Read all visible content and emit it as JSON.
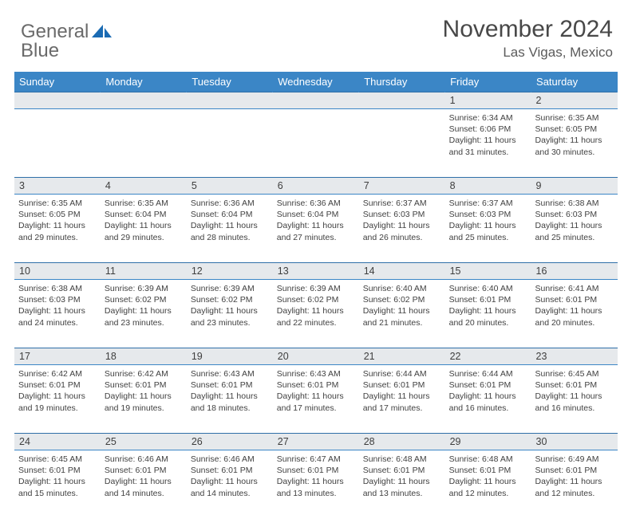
{
  "brand": {
    "name_a": "General",
    "name_b": "Blue"
  },
  "header": {
    "title": "November 2024",
    "location": "Las Vigas, Mexico"
  },
  "colors": {
    "header_bg": "#3b86c6",
    "header_text": "#ffffff",
    "daynum_bg": "#e6e9ec",
    "border": "#2f6fa8",
    "text": "#414141"
  },
  "days_of_week": [
    "Sunday",
    "Monday",
    "Tuesday",
    "Wednesday",
    "Thursday",
    "Friday",
    "Saturday"
  ],
  "weeks": [
    {
      "nums": [
        "",
        "",
        "",
        "",
        "",
        "1",
        "2"
      ],
      "cells": [
        "",
        "",
        "",
        "",
        "",
        "Sunrise: 6:34 AM\nSunset: 6:06 PM\nDaylight: 11 hours and 31 minutes.",
        "Sunrise: 6:35 AM\nSunset: 6:05 PM\nDaylight: 11 hours and 30 minutes."
      ]
    },
    {
      "nums": [
        "3",
        "4",
        "5",
        "6",
        "7",
        "8",
        "9"
      ],
      "cells": [
        "Sunrise: 6:35 AM\nSunset: 6:05 PM\nDaylight: 11 hours and 29 minutes.",
        "Sunrise: 6:35 AM\nSunset: 6:04 PM\nDaylight: 11 hours and 29 minutes.",
        "Sunrise: 6:36 AM\nSunset: 6:04 PM\nDaylight: 11 hours and 28 minutes.",
        "Sunrise: 6:36 AM\nSunset: 6:04 PM\nDaylight: 11 hours and 27 minutes.",
        "Sunrise: 6:37 AM\nSunset: 6:03 PM\nDaylight: 11 hours and 26 minutes.",
        "Sunrise: 6:37 AM\nSunset: 6:03 PM\nDaylight: 11 hours and 25 minutes.",
        "Sunrise: 6:38 AM\nSunset: 6:03 PM\nDaylight: 11 hours and 25 minutes."
      ]
    },
    {
      "nums": [
        "10",
        "11",
        "12",
        "13",
        "14",
        "15",
        "16"
      ],
      "cells": [
        "Sunrise: 6:38 AM\nSunset: 6:03 PM\nDaylight: 11 hours and 24 minutes.",
        "Sunrise: 6:39 AM\nSunset: 6:02 PM\nDaylight: 11 hours and 23 minutes.",
        "Sunrise: 6:39 AM\nSunset: 6:02 PM\nDaylight: 11 hours and 23 minutes.",
        "Sunrise: 6:39 AM\nSunset: 6:02 PM\nDaylight: 11 hours and 22 minutes.",
        "Sunrise: 6:40 AM\nSunset: 6:02 PM\nDaylight: 11 hours and 21 minutes.",
        "Sunrise: 6:40 AM\nSunset: 6:01 PM\nDaylight: 11 hours and 20 minutes.",
        "Sunrise: 6:41 AM\nSunset: 6:01 PM\nDaylight: 11 hours and 20 minutes."
      ]
    },
    {
      "nums": [
        "17",
        "18",
        "19",
        "20",
        "21",
        "22",
        "23"
      ],
      "cells": [
        "Sunrise: 6:42 AM\nSunset: 6:01 PM\nDaylight: 11 hours and 19 minutes.",
        "Sunrise: 6:42 AM\nSunset: 6:01 PM\nDaylight: 11 hours and 19 minutes.",
        "Sunrise: 6:43 AM\nSunset: 6:01 PM\nDaylight: 11 hours and 18 minutes.",
        "Sunrise: 6:43 AM\nSunset: 6:01 PM\nDaylight: 11 hours and 17 minutes.",
        "Sunrise: 6:44 AM\nSunset: 6:01 PM\nDaylight: 11 hours and 17 minutes.",
        "Sunrise: 6:44 AM\nSunset: 6:01 PM\nDaylight: 11 hours and 16 minutes.",
        "Sunrise: 6:45 AM\nSunset: 6:01 PM\nDaylight: 11 hours and 16 minutes."
      ]
    },
    {
      "nums": [
        "24",
        "25",
        "26",
        "27",
        "28",
        "29",
        "30"
      ],
      "cells": [
        "Sunrise: 6:45 AM\nSunset: 6:01 PM\nDaylight: 11 hours and 15 minutes.",
        "Sunrise: 6:46 AM\nSunset: 6:01 PM\nDaylight: 11 hours and 14 minutes.",
        "Sunrise: 6:46 AM\nSunset: 6:01 PM\nDaylight: 11 hours and 14 minutes.",
        "Sunrise: 6:47 AM\nSunset: 6:01 PM\nDaylight: 11 hours and 13 minutes.",
        "Sunrise: 6:48 AM\nSunset: 6:01 PM\nDaylight: 11 hours and 13 minutes.",
        "Sunrise: 6:48 AM\nSunset: 6:01 PM\nDaylight: 11 hours and 12 minutes.",
        "Sunrise: 6:49 AM\nSunset: 6:01 PM\nDaylight: 11 hours and 12 minutes."
      ]
    }
  ]
}
